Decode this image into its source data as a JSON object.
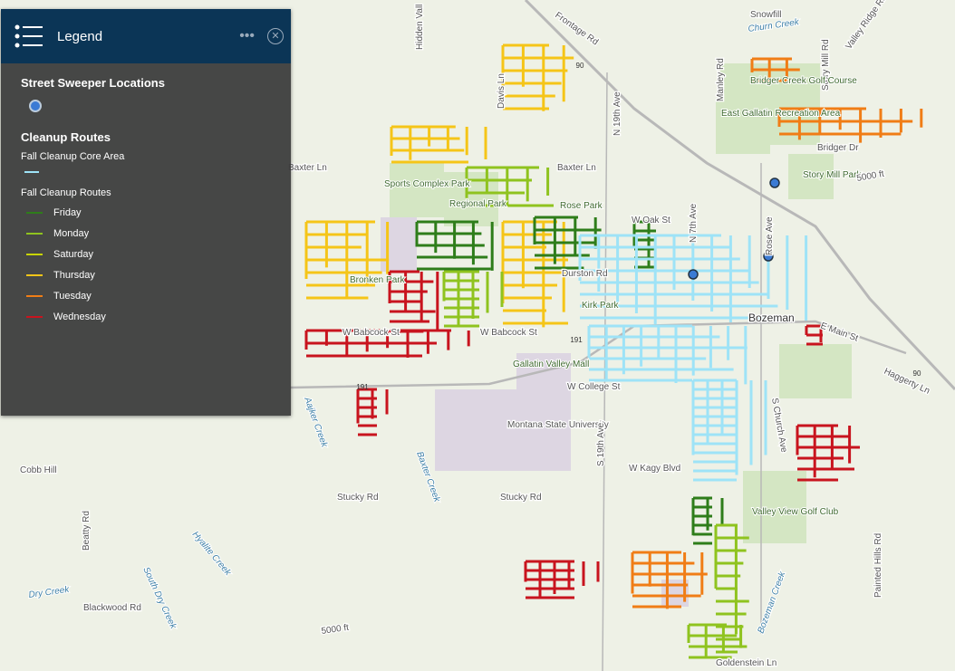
{
  "legend": {
    "title": "Legend",
    "sections": [
      {
        "title": "Street Sweeper Locations"
      },
      {
        "title": "Cleanup Routes",
        "core_area": "Fall Cleanup Core Area",
        "core_color": "#9ee3f7",
        "routes_title": "Fall Cleanup Routes",
        "items": [
          {
            "label": "Friday",
            "color": "#2e7d1a"
          },
          {
            "label": "Monday",
            "color": "#8fc31f"
          },
          {
            "label": "Saturday",
            "color": "#c8d400"
          },
          {
            "label": "Thursday",
            "color": "#f5c518"
          },
          {
            "label": "Tuesday",
            "color": "#f07d16"
          },
          {
            "label": "Wednesday",
            "color": "#c8141e"
          }
        ]
      }
    ]
  },
  "map_labels": [
    "Frontage Rd",
    "Hidden Vall",
    "Snowfill",
    "Churn Creek",
    "Valley Ridge Rd",
    "Story Mill Rd",
    "Manley Rd",
    "Bridger Creek Golf Course",
    "Davis Ln",
    "N 19th Ave",
    "East Gallatin Recreation Area",
    "Bridger Dr",
    "Baxter Ln",
    "Baxter Ln",
    "Sports Complex Park",
    "Regional Park",
    "Rose Park",
    "Story Mill Park",
    "5000 ft",
    "W Oak St",
    "N 7th Ave",
    "Rose Ave",
    "Bronken Park",
    "Durston Rd",
    "Kirk Park",
    "Bozeman",
    "E Main St",
    "W Babcock St",
    "W Babcock St",
    "Gallatin Valley Mall",
    "W College St",
    "Haggerty Ln",
    "Aajker Creek",
    "Baxter Creek",
    "Montana State University",
    "S 19th Ave",
    "W Kagy Blvd",
    "S Church Ave",
    "Cobb Hill",
    "Stucky Rd",
    "Stucky Rd",
    "Beatty Rd",
    "Hyalite Creek",
    "South Dry Creek",
    "Dry Creek",
    "Blackwood Rd",
    "Valley View Golf Club",
    "Bozeman Creek",
    "Painted Hills Rd",
    "Goldenstein Ln",
    "5000 ft",
    "90",
    "90",
    "191",
    "191"
  ]
}
